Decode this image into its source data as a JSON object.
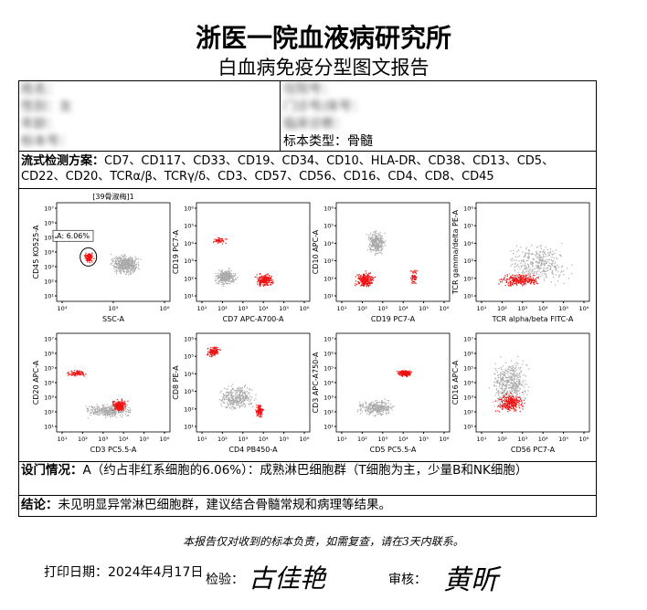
{
  "header": {
    "title": "浙医一院血液病研究所",
    "subtitle": "白血病免疫分型图文报告"
  },
  "info": {
    "left": [
      "姓名：",
      "性别：女",
      "年龄：",
      "标本号："
    ],
    "right": [
      "住院号：",
      "门诊号/床号：",
      "临床诊断：",
      "标本类型：骨髓"
    ]
  },
  "panel": {
    "label": "流式检测方案：",
    "text": "CD7、CD117、CD33、CD19、CD34、CD10、HLA-DR、CD38、CD13、CD5、CD22、CD20、TCRα/β、TCRγ/δ、CD3、CD57、CD56、CD16、CD4、CD8、CD45"
  },
  "plots": [
    {
      "title": "[39骨淑梅]1",
      "gate": "A: 6.06%",
      "x_label": "SSC-A",
      "y_label": "CD45 KO525-A",
      "xticks": [
        "10⁴",
        "10⁵",
        "10⁶"
      ],
      "yticks": [
        "10¹",
        "10²",
        "10³",
        "10⁴",
        "10⁵",
        "10⁶",
        "10⁷"
      ]
    },
    {
      "x_label": "CD7 APC-A700-A",
      "y_label": "CD19 PC7-A",
      "xticks": [
        "10¹",
        "10²",
        "10³",
        "10⁴",
        "10⁵",
        "10⁶"
      ],
      "yticks": [
        "10¹",
        "10²",
        "10³",
        "10⁴",
        "10⁵",
        "10⁶"
      ]
    },
    {
      "x_label": "CD19 PC7-A",
      "y_label": "CD10 APC-A",
      "xticks": [
        "10¹",
        "10²",
        "10³",
        "10⁴",
        "10⁵",
        "10⁶"
      ],
      "yticks": [
        "10¹",
        "10²",
        "10³",
        "10⁴",
        "10⁵",
        "10⁶"
      ]
    },
    {
      "x_label": "TCR alpha/beta FITC-A",
      "y_label": "TCR gamma/delta PE-A",
      "xticks": [
        "10¹",
        "10²",
        "10³",
        "10⁴",
        "10⁵",
        "10⁶"
      ],
      "yticks": [
        "10¹",
        "10²",
        "10³",
        "10⁴",
        "10⁵",
        "10⁶"
      ]
    },
    {
      "x_label": "CD3 PC5.5-A",
      "y_label": "CD20 APC-A",
      "xticks": [
        "10¹",
        "10²",
        "10³",
        "10⁴",
        "10⁵",
        "10⁶"
      ],
      "yticks": [
        "10¹",
        "10²",
        "10³",
        "10⁴",
        "10⁵",
        "10⁶",
        "10⁷"
      ]
    },
    {
      "x_label": "CD4 PB450-A",
      "y_label": "CD8 PE-A",
      "xticks": [
        "10¹",
        "10²",
        "10³",
        "10⁴",
        "10⁵",
        "10⁶"
      ],
      "yticks": [
        "10¹",
        "10²",
        "10³",
        "10⁴",
        "10⁵",
        "10⁶"
      ]
    },
    {
      "x_label": "CD5 PC5.5-A",
      "y_label": "CD3 APC-A750-A",
      "xticks": [
        "10¹",
        "10²",
        "10³",
        "10⁴",
        "10⁵",
        "10⁶"
      ],
      "yticks": [
        "10¹",
        "10²",
        "10³",
        "10⁴",
        "10⁵",
        "10⁶",
        "10⁷"
      ]
    },
    {
      "x_label": "CD56 PC7-A",
      "y_label": "CD16 APC-A",
      "xticks": [
        "10¹",
        "10²",
        "10³",
        "10⁴",
        "10⁵",
        "10⁶"
      ],
      "yticks": [
        "10¹",
        "10²",
        "10³",
        "10⁴",
        "10⁵",
        "10⁶",
        "10⁷"
      ]
    }
  ],
  "gating": {
    "label": "设门情况：",
    "text": "A（约占非红系细胞的6.06%）：成熟淋巴细胞群（T细胞为主，少量B和NK细胞）"
  },
  "conclusion": {
    "label": "结论：",
    "text": "未见明显异常淋巴细胞群，建议结合骨髓常规和病理等结果。"
  },
  "footer": {
    "note": "本报告仅对收到的标本负责，如需复查，请在3天内联系。",
    "print_date": "打印日期：2024年4月17日",
    "checker": "检验：",
    "checker_sign": "古佳艳",
    "reviewer": "审核：",
    "reviewer_sign": "黄昕"
  }
}
